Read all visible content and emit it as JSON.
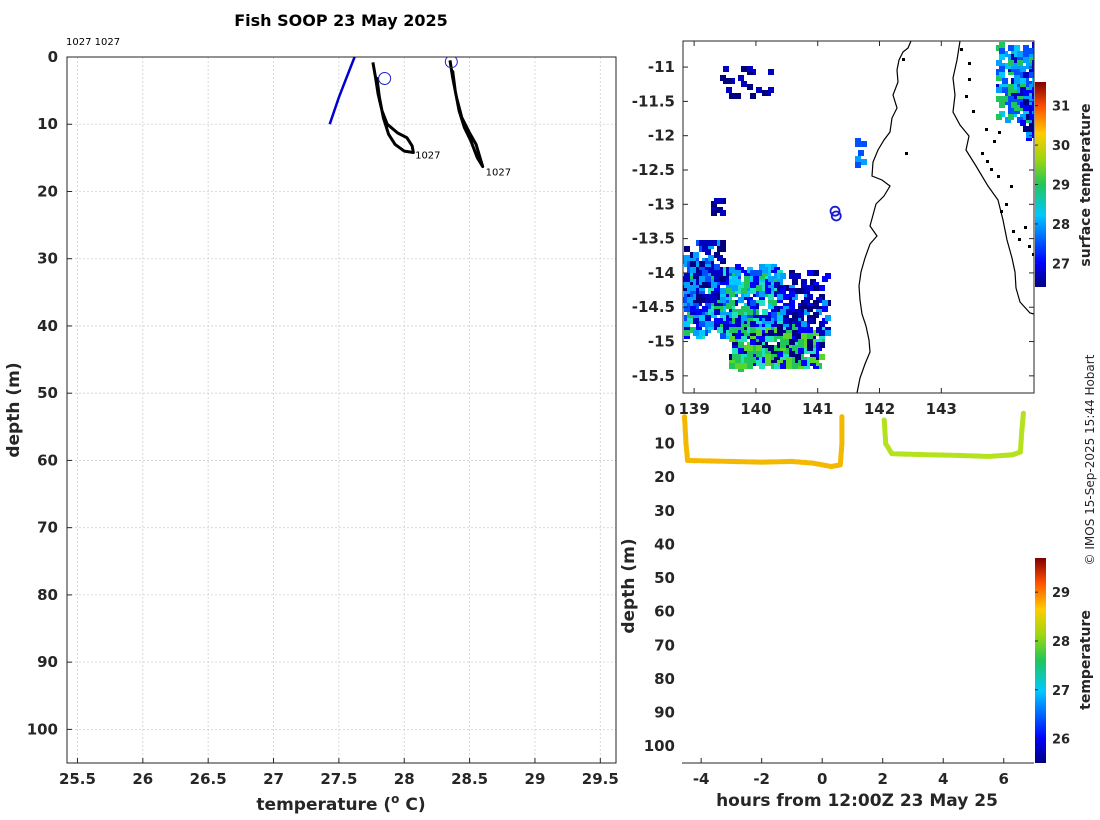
{
  "title": "Fish SOOP 23 May 2025",
  "credit": "© IMOS 15-Sep-2025 15:44 Hobart",
  "chart_data": [
    {
      "name": "profile",
      "type": "line",
      "xlabel": "temperature (o C)",
      "xlabel_prefix": "temperature (",
      "xlabel_sup": "o",
      "xlabel_suffix": " C)",
      "ylabel": "depth (m)",
      "xlim": [
        25.42,
        29.62
      ],
      "ylim": [
        0,
        105
      ],
      "y_reversed": true,
      "xticks": [
        "25.5",
        "26",
        "26.5",
        "27",
        "27.5",
        "28",
        "28.5",
        "29",
        "29.5"
      ],
      "yticks": [
        "0",
        "10",
        "20",
        "30",
        "40",
        "50",
        "60",
        "70",
        "80",
        "90",
        "100"
      ],
      "top_labels": "1027 1027",
      "series": [
        {
          "name": "reference",
          "color": "#0000d0",
          "points": [
            [
              27.43,
              10
            ],
            [
              27.5,
              6
            ],
            [
              27.56,
              3
            ],
            [
              27.62,
              0
            ]
          ]
        },
        {
          "name": "profile-1",
          "color": "#000000",
          "label": "1027",
          "points": [
            [
              27.76,
              0.8
            ],
            [
              27.78,
              3
            ],
            [
              27.8,
              5.5
            ],
            [
              27.83,
              8
            ],
            [
              27.87,
              10
            ],
            [
              27.95,
              11.3
            ],
            [
              28.02,
              12
            ],
            [
              28.06,
              13.2
            ],
            [
              28.07,
              14.2
            ],
            [
              28.0,
              14
            ],
            [
              27.93,
              13
            ],
            [
              27.88,
              11.5
            ],
            [
              27.84,
              9
            ],
            [
              27.81,
              6
            ],
            [
              27.79,
              3
            ]
          ],
          "label_at": [
            28.06,
            14.5
          ],
          "marker_at": [
            27.85,
            3.2
          ]
        },
        {
          "name": "profile-2",
          "color": "#000000",
          "label": "1027",
          "points": [
            [
              28.35,
              0.5
            ],
            [
              28.37,
              3
            ],
            [
              28.4,
              6
            ],
            [
              28.44,
              9
            ],
            [
              28.5,
              11.3
            ],
            [
              28.55,
              13
            ],
            [
              28.58,
              15
            ],
            [
              28.6,
              16.3
            ],
            [
              28.56,
              15
            ],
            [
              28.51,
              12.5
            ],
            [
              28.46,
              10.5
            ],
            [
              28.42,
              8
            ],
            [
              28.39,
              5
            ],
            [
              28.37,
              2
            ]
          ],
          "label_at": [
            28.6,
            17
          ],
          "marker_at": [
            28.36,
            0.7
          ]
        }
      ]
    },
    {
      "name": "surface-map",
      "type": "heatmap",
      "xticks": [
        "139",
        "140",
        "141",
        "142",
        "143"
      ],
      "xticks_shown": [
        "1̶39",
        "140",
        "141",
        "142",
        "143"
      ],
      "yticks": [
        "-11",
        "-11.5",
        "-12",
        "-12.5",
        "-13",
        "-13.5",
        "-14",
        "-14.5",
        "-15",
        "-15.5"
      ],
      "xlim": [
        138.82,
        144.5
      ],
      "ylim": [
        -15.75,
        -10.62
      ],
      "colorbar_label": "surface temperature",
      "colorbar_ticks": [
        "27",
        "28",
        "29",
        "30",
        "31"
      ],
      "colorbar_range": [
        26.4,
        31.6
      ],
      "track_markers": [
        [
          141.28,
          -13.1
        ],
        [
          141.3,
          -13.17
        ]
      ]
    },
    {
      "name": "depth-time",
      "type": "scatter",
      "xlabel": "hours from 12:00Z 23 May 25",
      "ylabel": "depth (m)",
      "xlim": [
        -4.6,
        7.0
      ],
      "ylim": [
        0,
        105
      ],
      "y_reversed": true,
      "xticks": [
        "-4",
        "-2",
        "0",
        "2",
        "4",
        "6"
      ],
      "yticks": [
        "0",
        "10",
        "20",
        "30",
        "40",
        "50",
        "60",
        "70",
        "80",
        "90",
        "100"
      ],
      "colorbar_label": "temperature",
      "colorbar_ticks": [
        "26",
        "27",
        "28",
        "29"
      ],
      "colorbar_range": [
        25.5,
        29.7
      ],
      "segments": [
        {
          "temperature": 28.3,
          "color": "#f4b800",
          "points": [
            [
              -4.55,
              2
            ],
            [
              -4.5,
              10
            ],
            [
              -4.45,
              15
            ],
            [
              -3,
              15.3
            ],
            [
              -2,
              15.5
            ],
            [
              -1,
              15.3
            ],
            [
              -0.3,
              15.8
            ],
            [
              0.3,
              16.8
            ],
            [
              0.6,
              16.3
            ],
            [
              0.65,
              10
            ],
            [
              0.65,
              2
            ]
          ]
        },
        {
          "temperature": 27.6,
          "color": "#b4e21e",
          "points": [
            [
              2.05,
              3
            ],
            [
              2.1,
              10
            ],
            [
              2.3,
              13
            ],
            [
              3.5,
              13.3
            ],
            [
              4.5,
              13.5
            ],
            [
              5.5,
              13.8
            ],
            [
              6.3,
              13.3
            ],
            [
              6.55,
              12.5
            ],
            [
              6.6,
              6
            ],
            [
              6.65,
              1
            ]
          ]
        }
      ]
    }
  ]
}
